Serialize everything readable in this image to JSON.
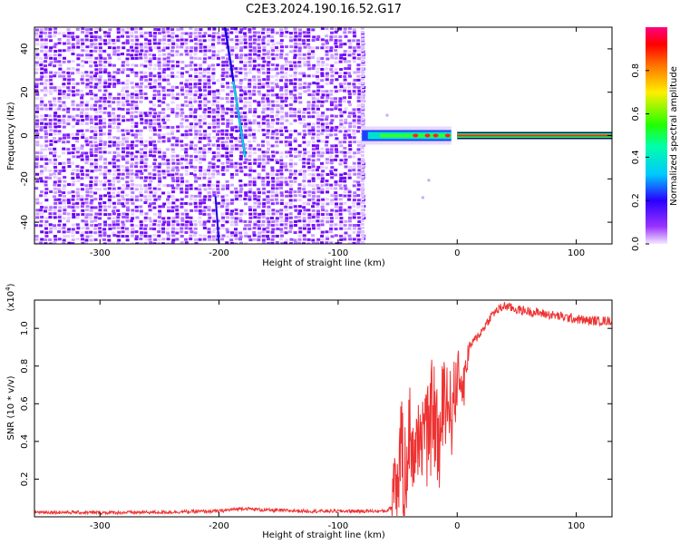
{
  "title": "C2E3.2024.190.16.52.G17",
  "chart_data": [
    {
      "type": "heatmap",
      "xlabel": "Height of straight line (km)",
      "ylabel": "Frequency (Hz)",
      "xlim": [
        -355,
        130
      ],
      "ylim": [
        -50,
        50
      ],
      "xticks": [
        -300,
        -200,
        -100,
        0,
        100
      ],
      "yticks": [
        -40,
        -20,
        0,
        20,
        40
      ],
      "noise_region_x": [
        -355,
        -78
      ],
      "signal_track": {
        "description_points": [
          {
            "x": -70,
            "y": 0
          },
          {
            "x": -50,
            "y": -1
          },
          {
            "x": -30,
            "y": 0
          },
          {
            "x": -10,
            "y": -3
          },
          {
            "x": 0,
            "y": 0
          },
          {
            "x": 130,
            "y": 0
          }
        ]
      },
      "diagonal_streak": {
        "x_start": -195,
        "y_start": 50,
        "x_end": -178,
        "y_end": -10
      },
      "colorbar": {
        "label": "Normalized spectral amplitude",
        "range": [
          0.0,
          1.0
        ],
        "ticks": [
          0.0,
          0.2,
          0.4,
          0.6,
          0.8
        ],
        "colors": [
          "#f2e4ff",
          "#7a00ff",
          "#0000ff",
          "#00e5ff",
          "#00ff00",
          "#ffff00",
          "#ff8800",
          "#ff0000",
          "#ff0090"
        ]
      }
    },
    {
      "type": "line",
      "xlabel": "Height of straight line (km)",
      "ylabel": "SNR (10 * v/v)",
      "y_multiplier": "(x10^4)",
      "xlim": [
        -355,
        130
      ],
      "ylim": [
        0,
        1.15
      ],
      "xticks": [
        -300,
        -200,
        -100,
        0,
        100
      ],
      "yticks": [
        0.2,
        0.4,
        0.6,
        0.8,
        1.0
      ],
      "series": [
        {
          "color": "#ee3333",
          "x": [
            -355,
            -300,
            -250,
            -200,
            -180,
            -170,
            -160,
            -120,
            -80,
            -60,
            -55,
            -52,
            -50,
            -48,
            -45,
            -40,
            -35,
            -30,
            -25,
            -20,
            -15,
            -10,
            -5,
            0,
            5,
            10,
            20,
            30,
            40,
            50,
            60,
            70,
            80,
            90,
            100,
            110,
            120,
            130
          ],
          "values": [
            0.025,
            0.022,
            0.024,
            0.03,
            0.045,
            0.04,
            0.035,
            0.03,
            0.03,
            0.03,
            0.05,
            0.35,
            0.1,
            0.4,
            0.2,
            0.45,
            0.3,
            0.5,
            0.4,
            0.6,
            0.35,
            0.7,
            0.55,
            0.75,
            0.7,
            0.9,
            0.98,
            1.08,
            1.12,
            1.1,
            1.09,
            1.08,
            1.07,
            1.06,
            1.05,
            1.04,
            1.04,
            1.04
          ]
        }
      ]
    }
  ]
}
